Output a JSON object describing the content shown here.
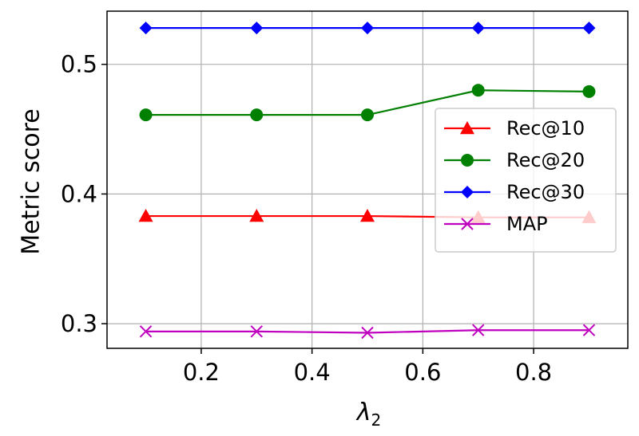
{
  "chart_data": {
    "type": "line",
    "x": [
      0.1,
      0.3,
      0.5,
      0.7,
      0.9
    ],
    "xlabel": "λ",
    "xlabel_subscript": "2",
    "ylabel": "Metric score",
    "xlim": [
      0.03,
      0.97
    ],
    "ylim": [
      0.281,
      0.541
    ],
    "xticks": [
      0.2,
      0.4,
      0.6,
      0.8
    ],
    "xtick_labels": [
      "0.2",
      "0.4",
      "0.6",
      "0.8"
    ],
    "yticks": [
      0.3,
      0.4,
      0.5
    ],
    "ytick_labels": [
      "0.3",
      "0.4",
      "0.5"
    ],
    "grid": true,
    "legend_position": "center-right",
    "series": [
      {
        "name": "Rec@10",
        "color": "#ff0000",
        "marker": "triangle",
        "values": [
          0.383,
          0.383,
          0.383,
          0.382,
          0.382
        ]
      },
      {
        "name": "Rec@20",
        "color": "#008000",
        "marker": "circle",
        "values": [
          0.461,
          0.461,
          0.461,
          0.48,
          0.479
        ]
      },
      {
        "name": "Rec@30",
        "color": "#0000ff",
        "marker": "diamond",
        "values": [
          0.528,
          0.528,
          0.528,
          0.528,
          0.528
        ]
      },
      {
        "name": "MAP",
        "color": "#bf00bf",
        "marker": "x",
        "values": [
          0.294,
          0.294,
          0.293,
          0.295,
          0.295
        ]
      }
    ]
  }
}
